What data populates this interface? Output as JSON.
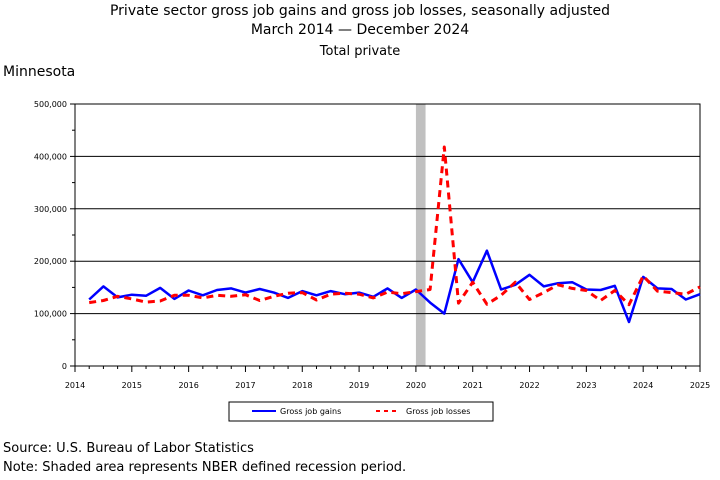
{
  "header": {
    "title_line1": "Private sector gross job gains and gross job losses, seasonally adjusted",
    "title_line2": "March 2014  — December 2024",
    "subtitle": "Total private",
    "region": "Minnesota"
  },
  "footer": {
    "source": "Source: U.S. Bureau of Labor Statistics",
    "note": "Note: Shaded area represents NBER defined recession period."
  },
  "colors": {
    "gains": "#0000ff",
    "losses": "#ff0000",
    "recession": "#c0c0c0"
  },
  "chart_data": {
    "type": "line",
    "x_start": 2014.25,
    "x_step": 0.25,
    "xlim": [
      2014,
      2025
    ],
    "x_ticks": [
      "2014",
      "2015",
      "2016",
      "2017",
      "2018",
      "2019",
      "2020",
      "2021",
      "2022",
      "2023",
      "2024",
      "2025"
    ],
    "ylim": [
      0,
      500000
    ],
    "y_ticks": [
      "0",
      "100,000",
      "200,000",
      "300,000",
      "400,000",
      "500,000"
    ],
    "grid": "horizontal",
    "legend_position": "bottom",
    "recession": [
      2020.0,
      2020.17
    ],
    "series": [
      {
        "name": "Gross job gains",
        "style": "solid",
        "values": [
          127000,
          152000,
          131000,
          136000,
          134000,
          149000,
          128000,
          144000,
          135000,
          145000,
          148000,
          140000,
          147000,
          140000,
          130000,
          143000,
          135000,
          143000,
          137000,
          140000,
          132000,
          148000,
          130000,
          146000,
          121000,
          100000,
          204000,
          160000,
          220000,
          146000,
          155000,
          174000,
          152000,
          158000,
          160000,
          146000,
          145000,
          153000,
          84000,
          170000,
          148000,
          147000,
          127000,
          137000
        ]
      },
      {
        "name": "Gross job losses",
        "style": "dashed",
        "values": [
          121000,
          125000,
          133000,
          128000,
          122000,
          124000,
          135000,
          135000,
          130000,
          135000,
          133000,
          136000,
          125000,
          133000,
          139000,
          140000,
          126000,
          137000,
          139000,
          137000,
          130000,
          141000,
          138000,
          142000,
          146000,
          418000,
          120000,
          160000,
          118000,
          135000,
          160000,
          127000,
          140000,
          155000,
          148000,
          144000,
          125000,
          144000,
          117000,
          172000,
          143000,
          140000,
          137000,
          151000
        ]
      }
    ]
  }
}
